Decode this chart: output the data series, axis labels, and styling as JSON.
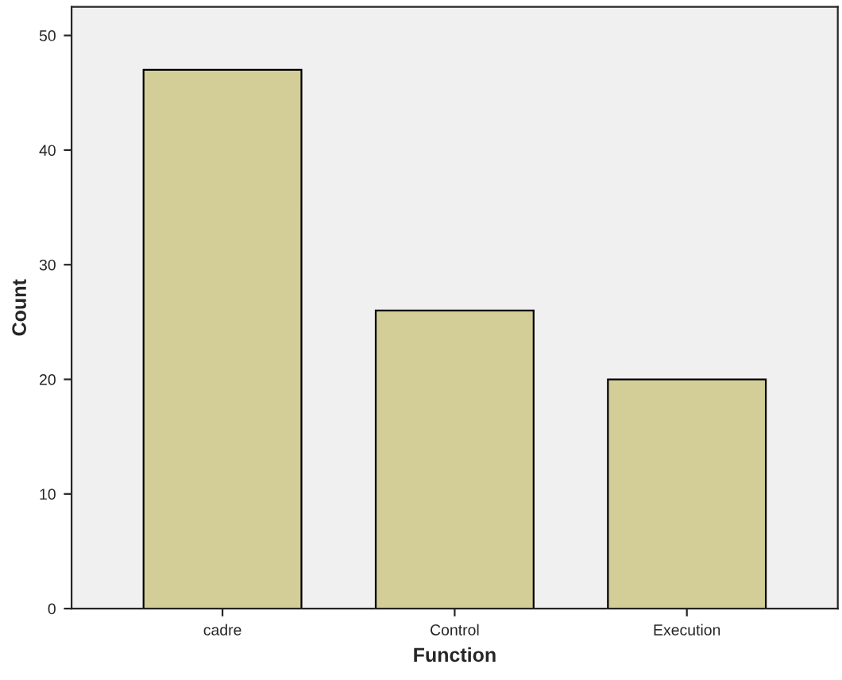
{
  "chart_data": {
    "type": "bar",
    "xlabel": "Function",
    "ylabel": "Count",
    "categories": [
      "cadre",
      "Control",
      "Execution"
    ],
    "values": [
      47,
      26,
      20
    ],
    "color": "#d3ce97",
    "ylim": [
      0,
      52.5
    ],
    "yticks": [
      0,
      10,
      20,
      30,
      40,
      50
    ],
    "grid": false
  }
}
